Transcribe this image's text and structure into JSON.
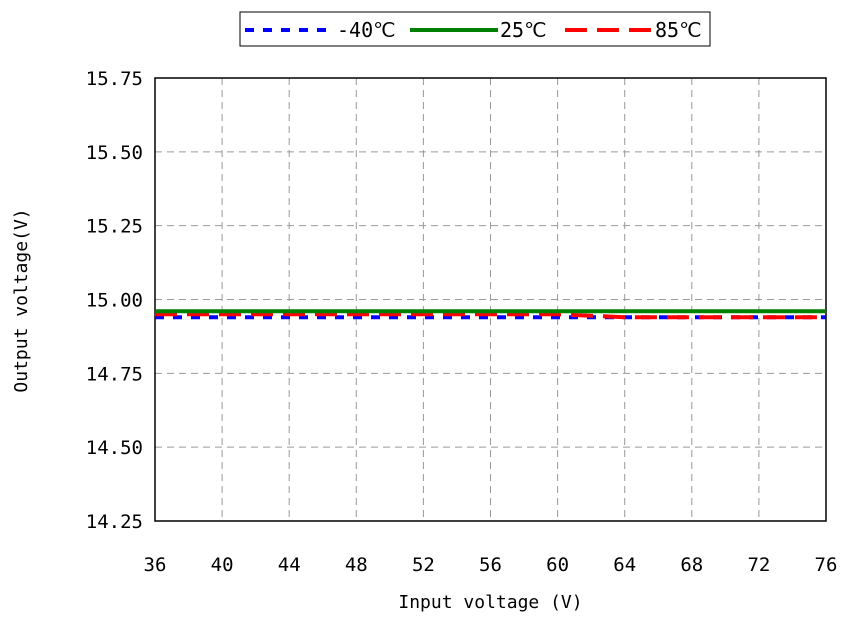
{
  "chart_data": {
    "type": "line",
    "xlabel": "Input voltage (V)",
    "ylabel": "Output voltage(V)",
    "xlim": [
      36,
      76
    ],
    "ylim": [
      14.25,
      15.75
    ],
    "xticks": [
      36,
      40,
      44,
      48,
      52,
      56,
      60,
      64,
      68,
      72,
      76
    ],
    "yticks": [
      14.25,
      14.5,
      14.75,
      15.0,
      15.25,
      15.5,
      15.75
    ],
    "ytick_labels": [
      "14.25",
      "14.50",
      "14.75",
      "15.00",
      "15.25",
      "15.50",
      "15.75"
    ],
    "grid": true,
    "legend_position": "top-center",
    "x": [
      36,
      40,
      44,
      48,
      52,
      56,
      60,
      64,
      68,
      72,
      76
    ],
    "series": [
      {
        "name": "-40℃",
        "color": "#0000ff",
        "style": "dotted",
        "values": [
          14.94,
          14.94,
          14.94,
          14.94,
          14.94,
          14.94,
          14.94,
          14.94,
          14.94,
          14.94,
          14.94
        ]
      },
      {
        "name": "25℃",
        "color": "#008000",
        "style": "solid",
        "values": [
          14.96,
          14.96,
          14.96,
          14.96,
          14.96,
          14.96,
          14.96,
          14.96,
          14.96,
          14.96,
          14.96
        ]
      },
      {
        "name": "85℃",
        "color": "#ff0000",
        "style": "dashed",
        "values": [
          14.95,
          14.95,
          14.95,
          14.95,
          14.95,
          14.95,
          14.95,
          14.94,
          14.94,
          14.94,
          14.94
        ]
      }
    ]
  }
}
